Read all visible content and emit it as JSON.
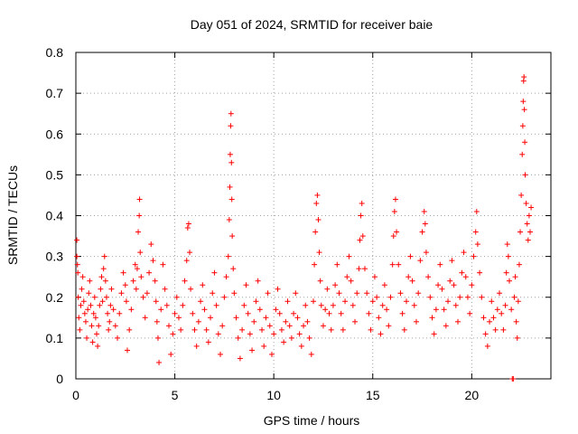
{
  "chart_data": {
    "type": "scatter",
    "title": "Day 051 of 2024, SRMTID for receiver baie",
    "xlabel": "GPS time / hours",
    "ylabel": "SRMTID / TECUs",
    "xlim": [
      0,
      24
    ],
    "ylim": [
      0,
      0.8
    ],
    "x_ticks": [
      0,
      5,
      10,
      15,
      20
    ],
    "x_tick_labels": [
      "0",
      "5",
      "10",
      "15",
      "20"
    ],
    "y_ticks": [
      0,
      0.1,
      0.2,
      0.3,
      0.4,
      0.5,
      0.6,
      0.7,
      0.8
    ],
    "y_tick_labels": [
      "0",
      "0.1",
      "0.2",
      "0.3",
      "0.4",
      "0.5",
      "0.6",
      "0.7",
      "0.8"
    ],
    "grid": true,
    "marker": "plus",
    "color": "#ff0000",
    "series": [
      {
        "name": "SRMTID",
        "points": [
          [
            0.05,
            0.34
          ],
          [
            0.05,
            0.3
          ],
          [
            0.08,
            0.28
          ],
          [
            0.1,
            0.26
          ],
          [
            0.12,
            0.2
          ],
          [
            0.15,
            0.15
          ],
          [
            0.2,
            0.12
          ],
          [
            0.25,
            0.18
          ],
          [
            0.3,
            0.22
          ],
          [
            0.35,
            0.25
          ],
          [
            0.4,
            0.19
          ],
          [
            0.45,
            0.16
          ],
          [
            0.5,
            0.14
          ],
          [
            0.55,
            0.1
          ],
          [
            0.6,
            0.17
          ],
          [
            0.65,
            0.21
          ],
          [
            0.7,
            0.24
          ],
          [
            0.75,
            0.18
          ],
          [
            0.8,
            0.13
          ],
          [
            0.85,
            0.09
          ],
          [
            0.9,
            0.16
          ],
          [
            0.95,
            0.2
          ],
          [
            1.0,
            0.15
          ],
          [
            1.05,
            0.11
          ],
          [
            1.1,
            0.08
          ],
          [
            1.15,
            0.13
          ],
          [
            1.2,
            0.18
          ],
          [
            1.25,
            0.22
          ],
          [
            1.3,
            0.25
          ],
          [
            1.35,
            0.19
          ],
          [
            1.4,
            0.27
          ],
          [
            1.45,
            0.3
          ],
          [
            1.5,
            0.24
          ],
          [
            1.55,
            0.2
          ],
          [
            1.6,
            0.16
          ],
          [
            1.65,
            0.12
          ],
          [
            1.7,
            0.14
          ],
          [
            1.75,
            0.18
          ],
          [
            1.8,
            0.22
          ],
          [
            1.9,
            0.17
          ],
          [
            2.0,
            0.13
          ],
          [
            2.1,
            0.1
          ],
          [
            2.2,
            0.16
          ],
          [
            2.3,
            0.21
          ],
          [
            2.4,
            0.26
          ],
          [
            2.5,
            0.23
          ],
          [
            2.55,
            0.19
          ],
          [
            2.6,
            0.07
          ],
          [
            2.7,
            0.12
          ],
          [
            2.8,
            0.17
          ],
          [
            2.9,
            0.24
          ],
          [
            3.0,
            0.28
          ],
          [
            3.05,
            0.22
          ],
          [
            3.1,
            0.27
          ],
          [
            3.15,
            0.36
          ],
          [
            3.2,
            0.4
          ],
          [
            3.22,
            0.44
          ],
          [
            3.25,
            0.31
          ],
          [
            3.3,
            0.25
          ],
          [
            3.4,
            0.2
          ],
          [
            3.5,
            0.15
          ],
          [
            3.6,
            0.21
          ],
          [
            3.7,
            0.26
          ],
          [
            3.8,
            0.33
          ],
          [
            3.9,
            0.29
          ],
          [
            4.0,
            0.24
          ],
          [
            4.05,
            0.19
          ],
          [
            4.1,
            0.14
          ],
          [
            4.15,
            0.1
          ],
          [
            4.2,
            0.04
          ],
          [
            4.3,
            0.17
          ],
          [
            4.4,
            0.28
          ],
          [
            4.5,
            0.22
          ],
          [
            4.6,
            0.18
          ],
          [
            4.7,
            0.13
          ],
          [
            4.8,
            0.06
          ],
          [
            4.9,
            0.11
          ],
          [
            5.0,
            0.16
          ],
          [
            5.1,
            0.2
          ],
          [
            5.2,
            0.15
          ],
          [
            5.3,
            0.12
          ],
          [
            5.4,
            0.18
          ],
          [
            5.5,
            0.24
          ],
          [
            5.6,
            0.29
          ],
          [
            5.65,
            0.37
          ],
          [
            5.7,
            0.38
          ],
          [
            5.75,
            0.31
          ],
          [
            5.8,
            0.22
          ],
          [
            5.9,
            0.16
          ],
          [
            6.0,
            0.12
          ],
          [
            6.1,
            0.08
          ],
          [
            6.2,
            0.14
          ],
          [
            6.3,
            0.19
          ],
          [
            6.4,
            0.23
          ],
          [
            6.5,
            0.17
          ],
          [
            6.6,
            0.12
          ],
          [
            6.7,
            0.09
          ],
          [
            6.8,
            0.15
          ],
          [
            6.9,
            0.21
          ],
          [
            7.0,
            0.26
          ],
          [
            7.1,
            0.18
          ],
          [
            7.2,
            0.11
          ],
          [
            7.3,
            0.06
          ],
          [
            7.4,
            0.13
          ],
          [
            7.5,
            0.2
          ],
          [
            7.6,
            0.25
          ],
          [
            7.7,
            0.3
          ],
          [
            7.75,
            0.39
          ],
          [
            7.78,
            0.47
          ],
          [
            7.8,
            0.55
          ],
          [
            7.82,
            0.62
          ],
          [
            7.84,
            0.65
          ],
          [
            7.86,
            0.53
          ],
          [
            7.88,
            0.44
          ],
          [
            7.9,
            0.35
          ],
          [
            7.95,
            0.27
          ],
          [
            8.0,
            0.21
          ],
          [
            8.1,
            0.15
          ],
          [
            8.2,
            0.1
          ],
          [
            8.3,
            0.05
          ],
          [
            8.4,
            0.12
          ],
          [
            8.5,
            0.18
          ],
          [
            8.6,
            0.23
          ],
          [
            8.7,
            0.16
          ],
          [
            8.8,
            0.11
          ],
          [
            8.9,
            0.07
          ],
          [
            9.0,
            0.14
          ],
          [
            9.1,
            0.19
          ],
          [
            9.2,
            0.24
          ],
          [
            9.3,
            0.17
          ],
          [
            9.4,
            0.12
          ],
          [
            9.5,
            0.08
          ],
          [
            9.6,
            0.15
          ],
          [
            9.7,
            0.21
          ],
          [
            9.8,
            0.13
          ],
          [
            9.9,
            0.06
          ],
          [
            10.0,
            0.11
          ],
          [
            10.1,
            0.17
          ],
          [
            10.2,
            0.22
          ],
          [
            10.3,
            0.16
          ],
          [
            10.4,
            0.12
          ],
          [
            10.5,
            0.09
          ],
          [
            10.6,
            0.14
          ],
          [
            10.7,
            0.19
          ],
          [
            10.8,
            0.13
          ],
          [
            10.9,
            0.1
          ],
          [
            11.0,
            0.16
          ],
          [
            11.1,
            0.21
          ],
          [
            11.2,
            0.15
          ],
          [
            11.3,
            0.11
          ],
          [
            11.4,
            0.08
          ],
          [
            11.5,
            0.13
          ],
          [
            11.6,
            0.18
          ],
          [
            11.7,
            0.14
          ],
          [
            11.8,
            0.1
          ],
          [
            11.9,
            0.06
          ],
          [
            12.0,
            0.19
          ],
          [
            12.05,
            0.28
          ],
          [
            12.1,
            0.36
          ],
          [
            12.15,
            0.43
          ],
          [
            12.2,
            0.45
          ],
          [
            12.25,
            0.39
          ],
          [
            12.3,
            0.31
          ],
          [
            12.35,
            0.24
          ],
          [
            12.4,
            0.18
          ],
          [
            12.5,
            0.13
          ],
          [
            12.6,
            0.17
          ],
          [
            12.7,
            0.22
          ],
          [
            12.8,
            0.16
          ],
          [
            12.9,
            0.12
          ],
          [
            13.0,
            0.18
          ],
          [
            13.1,
            0.23
          ],
          [
            13.2,
            0.28
          ],
          [
            13.3,
            0.21
          ],
          [
            13.4,
            0.16
          ],
          [
            13.5,
            0.12
          ],
          [
            13.6,
            0.19
          ],
          [
            13.7,
            0.25
          ],
          [
            13.8,
            0.3
          ],
          [
            13.9,
            0.24
          ],
          [
            14.0,
            0.18
          ],
          [
            14.1,
            0.14
          ],
          [
            14.2,
            0.21
          ],
          [
            14.3,
            0.27
          ],
          [
            14.35,
            0.34
          ],
          [
            14.4,
            0.4
          ],
          [
            14.45,
            0.43
          ],
          [
            14.5,
            0.35
          ],
          [
            14.6,
            0.27
          ],
          [
            14.7,
            0.21
          ],
          [
            14.8,
            0.16
          ],
          [
            14.9,
            0.12
          ],
          [
            15.0,
            0.19
          ],
          [
            15.1,
            0.25
          ],
          [
            15.2,
            0.2
          ],
          [
            15.3,
            0.15
          ],
          [
            15.4,
            0.11
          ],
          [
            15.5,
            0.18
          ],
          [
            15.6,
            0.23
          ],
          [
            15.7,
            0.17
          ],
          [
            15.8,
            0.13
          ],
          [
            15.9,
            0.2
          ],
          [
            16.0,
            0.28
          ],
          [
            16.05,
            0.35
          ],
          [
            16.1,
            0.41
          ],
          [
            16.15,
            0.44
          ],
          [
            16.2,
            0.36
          ],
          [
            16.3,
            0.28
          ],
          [
            16.4,
            0.21
          ],
          [
            16.5,
            0.16
          ],
          [
            16.6,
            0.12
          ],
          [
            16.7,
            0.19
          ],
          [
            16.8,
            0.25
          ],
          [
            16.9,
            0.3
          ],
          [
            17.0,
            0.24
          ],
          [
            17.1,
            0.18
          ],
          [
            17.2,
            0.14
          ],
          [
            17.3,
            0.21
          ],
          [
            17.4,
            0.29
          ],
          [
            17.5,
            0.36
          ],
          [
            17.6,
            0.41
          ],
          [
            17.65,
            0.38
          ],
          [
            17.7,
            0.31
          ],
          [
            17.8,
            0.25
          ],
          [
            17.9,
            0.2
          ],
          [
            18.0,
            0.15
          ],
          [
            18.1,
            0.11
          ],
          [
            18.2,
            0.17
          ],
          [
            18.3,
            0.23
          ],
          [
            18.4,
            0.28
          ],
          [
            18.5,
            0.22
          ],
          [
            18.6,
            0.17
          ],
          [
            18.7,
            0.13
          ],
          [
            18.8,
            0.19
          ],
          [
            18.9,
            0.24
          ],
          [
            19.0,
            0.29
          ],
          [
            19.1,
            0.23
          ],
          [
            19.2,
            0.18
          ],
          [
            19.3,
            0.14
          ],
          [
            19.4,
            0.2
          ],
          [
            19.5,
            0.26
          ],
          [
            19.6,
            0.31
          ],
          [
            19.7,
            0.25
          ],
          [
            19.8,
            0.2
          ],
          [
            19.9,
            0.16
          ],
          [
            20.0,
            0.23
          ],
          [
            20.1,
            0.3
          ],
          [
            20.2,
            0.36
          ],
          [
            20.25,
            0.41
          ],
          [
            20.3,
            0.33
          ],
          [
            20.4,
            0.26
          ],
          [
            20.5,
            0.2
          ],
          [
            20.6,
            0.15
          ],
          [
            20.7,
            0.11
          ],
          [
            20.8,
            0.08
          ],
          [
            20.9,
            0.14
          ],
          [
            21.0,
            0.19
          ],
          [
            21.1,
            0.15
          ],
          [
            21.2,
            0.12
          ],
          [
            21.3,
            0.17
          ],
          [
            21.4,
            0.21
          ],
          [
            21.5,
            0.16
          ],
          [
            21.6,
            0.12
          ],
          [
            21.7,
            0.18
          ],
          [
            21.75,
            0.26
          ],
          [
            21.8,
            0.33
          ],
          [
            21.85,
            0.3
          ],
          [
            21.9,
            0.24
          ],
          [
            22.0,
            0.17
          ],
          [
            22.05,
            0.0
          ],
          [
            22.1,
            0.0
          ],
          [
            22.15,
            0.2
          ],
          [
            22.2,
            0.25
          ],
          [
            22.25,
            0.14
          ],
          [
            22.3,
            0.1
          ],
          [
            22.35,
            0.19
          ],
          [
            22.4,
            0.28
          ],
          [
            22.45,
            0.36
          ],
          [
            22.5,
            0.45
          ],
          [
            22.55,
            0.55
          ],
          [
            22.58,
            0.62
          ],
          [
            22.6,
            0.68
          ],
          [
            22.62,
            0.73
          ],
          [
            22.64,
            0.74
          ],
          [
            22.66,
            0.66
          ],
          [
            22.68,
            0.58
          ],
          [
            22.7,
            0.5
          ],
          [
            22.75,
            0.43
          ],
          [
            22.8,
            0.38
          ],
          [
            22.85,
            0.34
          ],
          [
            22.9,
            0.4
          ],
          [
            22.95,
            0.36
          ],
          [
            23.0,
            0.42
          ]
        ]
      }
    ]
  }
}
